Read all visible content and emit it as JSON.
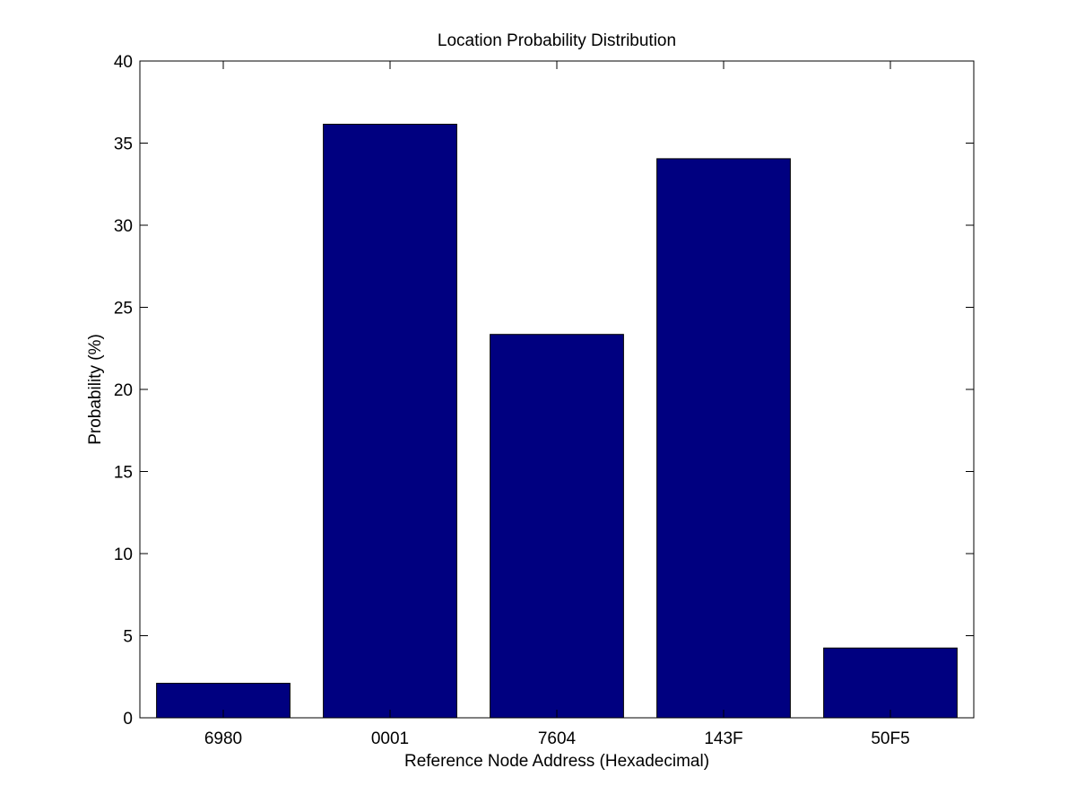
{
  "chart_data": {
    "type": "bar",
    "title": "Location Probability Distribution",
    "xlabel": "Reference Node Address (Hexadecimal)",
    "ylabel": "Probability (%)",
    "categories": [
      "6980",
      "0001",
      "7604",
      "143F",
      "50F5"
    ],
    "values": [
      2.1,
      36.15,
      23.35,
      34.05,
      4.25
    ],
    "ylim": [
      0,
      40
    ],
    "yticks": [
      0,
      5,
      10,
      15,
      20,
      25,
      30,
      35,
      40
    ],
    "grid": false,
    "legend": "none",
    "bar_color": "#000080",
    "edge_color": "#000000"
  }
}
